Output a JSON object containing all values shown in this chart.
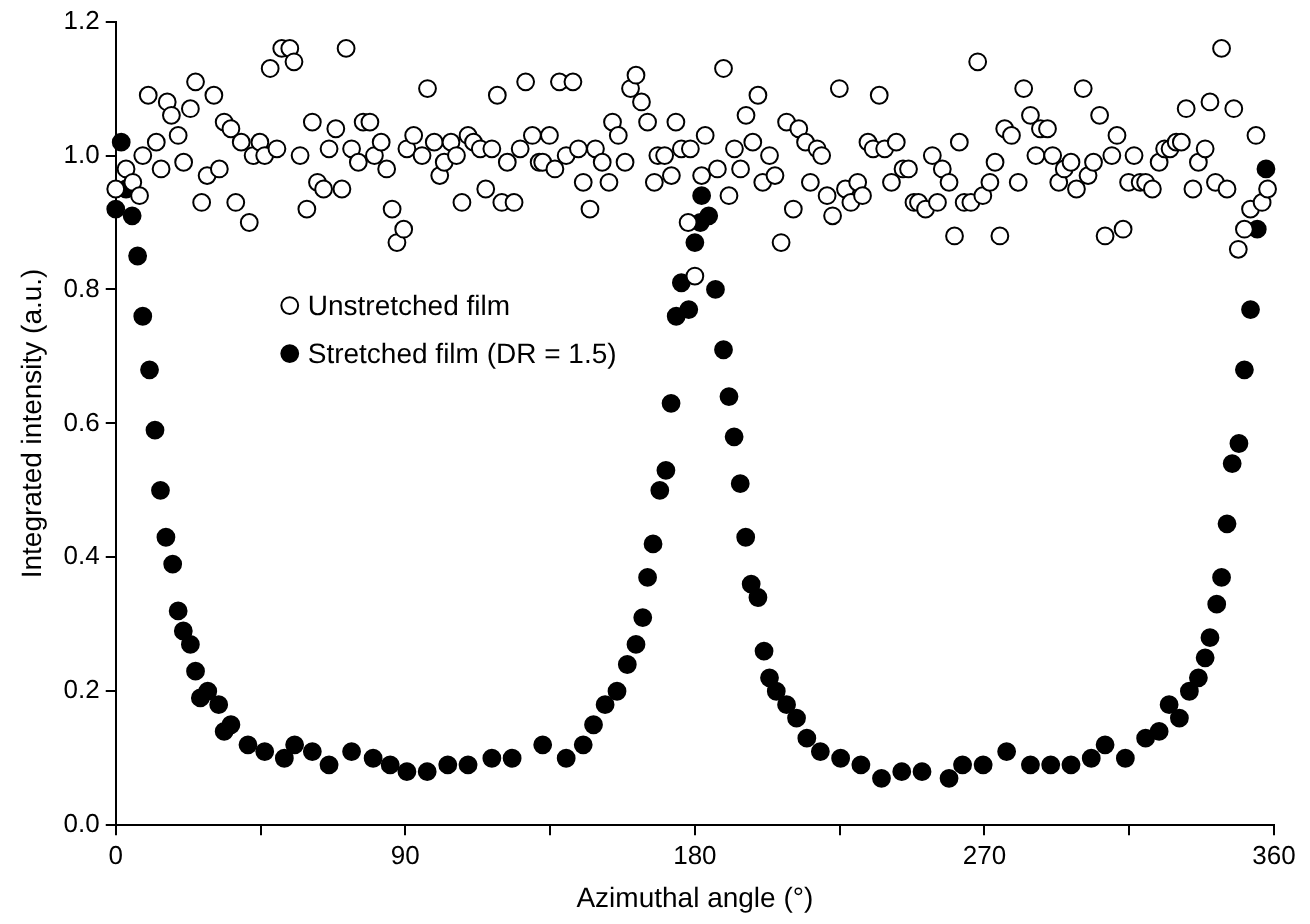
{
  "chart_data": {
    "type": "scatter",
    "xlabel": "Azimuthal angle (°)",
    "ylabel": "Integrated intensity (a.u.)",
    "xlim": [
      0,
      360
    ],
    "xticks": [
      0,
      {
        "value": 45,
        "label": null
      },
      90,
      {
        "value": 135,
        "label": null
      },
      180,
      {
        "value": 225,
        "label": null
      },
      270,
      {
        "value": 315,
        "label": null
      },
      360
    ],
    "ylim": [
      0,
      1.2
    ],
    "yticks": [
      {
        "value": 0,
        "label": "0.0"
      },
      {
        "value": 0.2,
        "label": "0.2"
      },
      {
        "value": 0.4,
        "label": "0.4"
      },
      {
        "value": 0.6,
        "label": "0.6"
      },
      {
        "value": 0.8,
        "label": "0.8"
      },
      {
        "value": 1,
        "label": "1.0"
      },
      {
        "value": 1.2,
        "label": "1.2"
      }
    ],
    "grid": false,
    "legend": "top left",
    "marker": "circle",
    "series": [
      {
        "name": "Unstretched film",
        "color": "#ffffff",
        "x": [
          0,
          3.2,
          5.3,
          7.4,
          8.4,
          10.1,
          12.6,
          14.1,
          16.0,
          17.3,
          19.4,
          21.1,
          23.2,
          24.8,
          26.7,
          28.4,
          30.5,
          32.2,
          33.7,
          35.8,
          37.3,
          39.0,
          41.5,
          42.7,
          44.8,
          46.3,
          48.0,
          50.1,
          51.6,
          54.1,
          55.4,
          57.3,
          59.4,
          61.1,
          62.7,
          64.6,
          66.3,
          68.4,
          70.3,
          71.6,
          73.3,
          75.4,
          76.9,
          79.0,
          80.4,
          82.5,
          84.2,
          85.9,
          87.4,
          89.5,
          90.5,
          92.6,
          95.2,
          96.9,
          99.0,
          100.7,
          102.1,
          104.2,
          105.9,
          107.6,
          109.5,
          111.2,
          113.3,
          115.0,
          116.9,
          118.6,
          120.0,
          121.7,
          123.8,
          125.7,
          127.4,
          129.5,
          131.6,
          132.7,
          134.8,
          136.5,
          137.9,
          140.0,
          142.1,
          143.8,
          145.3,
          147.4,
          149.1,
          151.2,
          153.3,
          154.4,
          156.2,
          158.3,
          160.0,
          161.7,
          163.4,
          165.3,
          167.4,
          168.5,
          170.6,
          172.7,
          174.1,
          175.8,
          177.9,
          180.0,
          182.1,
          178.6,
          183.2,
          187.0,
          188.9,
          190.6,
          192.3,
          194.2,
          195.9,
          198.0,
          199.6,
          201.1,
          203.2,
          204.9,
          206.8,
          208.5,
          210.6,
          212.3,
          214.4,
          215.9,
          218.0,
          219.4,
          221.1,
          222.8,
          224.9,
          226.8,
          228.5,
          230.6,
          232.1,
          233.8,
          235.4,
          237.3,
          239.0,
          241.1,
          242.6,
          244.7,
          246.4,
          248.1,
          249.5,
          251.7,
          253.8,
          255.4,
          256.9,
          259.0,
          260.7,
          262.2,
          263.7,
          265.8,
          267.9,
          269.5,
          271.7,
          273.3,
          274.8,
          276.3,
          278.4,
          280.5,
          282.2,
          284.3,
          286.0,
          287.4,
          289.6,
          291.2,
          293.1,
          294.8,
          296.9,
          298.6,
          300.7,
          302.2,
          303.9,
          305.8,
          307.5,
          309.6,
          311.2,
          313.1,
          314.8,
          316.5,
          318.4,
          320.1,
          322.2,
          324.3,
          326.0,
          327.7,
          329.6,
          331.2,
          332.7,
          334.8,
          336.5,
          338.6,
          340.1,
          341.8,
          343.7,
          345.4,
          347.5,
          348.9,
          350.8,
          352.7,
          354.4,
          356.3,
          358.0
        ],
        "values": [
          0.95,
          0.98,
          0.96,
          0.94,
          1.0,
          1.09,
          1.02,
          0.98,
          1.08,
          1.06,
          1.03,
          0.99,
          1.07,
          1.11,
          0.93,
          0.97,
          1.09,
          0.98,
          1.05,
          1.04,
          0.93,
          1.02,
          0.9,
          1.0,
          1.02,
          1.0,
          1.13,
          1.01,
          1.16,
          1.16,
          1.14,
          1.0,
          0.92,
          1.05,
          0.96,
          0.95,
          1.01,
          1.04,
          0.95,
          1.16,
          1.01,
          0.99,
          1.05,
          1.05,
          1.0,
          1.02,
          0.98,
          0.92,
          0.87,
          0.89,
          1.01,
          1.03,
          1.0,
          1.1,
          1.02,
          0.97,
          0.99,
          1.02,
          1.0,
          0.93,
          1.03,
          1.02,
          1.01,
          0.95,
          1.01,
          1.09,
          0.93,
          0.99,
          0.93,
          1.01,
          1.11,
          1.03,
          0.99,
          0.99,
          1.03,
          0.98,
          1.11,
          1.0,
          1.11,
          1.01,
          0.96,
          0.92,
          1.01,
          0.99,
          0.96,
          1.05,
          1.03,
          0.99,
          1.1,
          1.12,
          1.08,
          1.05,
          0.96,
          1.0,
          1.0,
          0.97,
          1.05,
          1.01,
          0.9,
          0.82,
          0.97,
          1.01,
          1.03,
          0.98,
          1.13,
          0.94,
          1.01,
          0.98,
          1.06,
          1.02,
          1.09,
          0.96,
          1.0,
          0.97,
          0.87,
          1.05,
          0.92,
          1.04,
          1.02,
          0.96,
          1.01,
          1.0,
          0.94,
          0.91,
          1.1,
          0.95,
          0.93,
          0.96,
          0.94,
          1.02,
          1.01,
          1.09,
          1.01,
          0.96,
          1.02,
          0.98,
          0.98,
          0.93,
          0.93,
          0.92,
          1.0,
          0.93,
          0.98,
          0.96,
          0.88,
          1.02,
          0.93,
          0.93,
          1.14,
          0.94,
          0.96,
          0.99,
          0.88,
          1.04,
          1.03,
          0.96,
          1.1,
          1.06,
          1.0,
          1.04,
          1.04,
          1.0,
          0.96,
          0.98,
          0.99,
          0.95,
          1.1,
          0.97,
          0.99,
          1.06,
          0.88,
          1.0,
          1.03,
          0.89,
          0.96,
          1.0,
          0.96,
          0.96,
          0.95,
          0.99,
          1.01,
          1.01,
          1.02,
          1.02,
          1.07,
          0.95,
          0.99,
          1.01,
          1.08,
          0.96,
          1.16,
          0.95,
          1.07,
          0.86,
          0.89,
          0.92,
          1.03,
          0.93,
          0.95
        ]
      },
      {
        "name": "Stretched film (DR = 1.5)",
        "color": "#000000",
        "x": [
          0.0,
          1.7,
          3.2,
          5.1,
          6.8,
          8.4,
          10.5,
          12.2,
          13.9,
          15.6,
          17.7,
          19.4,
          21.0,
          23.2,
          24.8,
          26.3,
          28.6,
          32.0,
          33.7,
          35.8,
          41.1,
          46.3,
          52.4,
          55.6,
          61.1,
          66.3,
          73.3,
          80.0,
          85.3,
          90.5,
          96.8,
          103.2,
          109.5,
          116.9,
          123.2,
          132.7,
          140.0,
          145.3,
          148.5,
          152.1,
          155.8,
          159.0,
          161.7,
          163.8,
          165.3,
          167.0,
          169.1,
          171.0,
          172.6,
          174.2,
          175.8,
          178.1,
          180.0,
          181.7,
          182.1,
          184.3,
          186.4,
          188.9,
          190.6,
          192.2,
          194.1,
          195.8,
          197.5,
          199.6,
          201.5,
          203.2,
          205.3,
          208.5,
          211.6,
          214.8,
          219.0,
          225.3,
          231.6,
          238.0,
          244.3,
          250.6,
          259.0,
          263.2,
          269.6,
          276.9,
          284.3,
          290.6,
          296.9,
          303.2,
          307.5,
          313.8,
          320.1,
          324.3,
          327.4,
          330.6,
          333.7,
          336.5,
          338.6,
          340.1,
          342.2,
          343.7,
          345.4,
          347.0,
          349.1,
          350.8,
          352.7,
          354.8,
          357.5
        ],
        "values": [
          0.92,
          1.02,
          0.95,
          0.91,
          0.85,
          0.76,
          0.68,
          0.59,
          0.5,
          0.43,
          0.39,
          0.32,
          0.29,
          0.27,
          0.23,
          0.19,
          0.2,
          0.18,
          0.14,
          0.15,
          0.12,
          0.11,
          0.1,
          0.12,
          0.11,
          0.09,
          0.11,
          0.1,
          0.09,
          0.08,
          0.08,
          0.09,
          0.09,
          0.1,
          0.1,
          0.12,
          0.1,
          0.12,
          0.15,
          0.18,
          0.2,
          0.24,
          0.27,
          0.31,
          0.37,
          0.42,
          0.5,
          0.53,
          0.63,
          0.76,
          0.81,
          0.77,
          0.87,
          0.9,
          0.94,
          0.91,
          0.8,
          0.71,
          0.64,
          0.58,
          0.51,
          0.43,
          0.36,
          0.34,
          0.26,
          0.22,
          0.2,
          0.18,
          0.16,
          0.13,
          0.11,
          0.1,
          0.09,
          0.07,
          0.08,
          0.08,
          0.07,
          0.09,
          0.09,
          0.11,
          0.09,
          0.09,
          0.09,
          0.1,
          0.12,
          0.1,
          0.13,
          0.14,
          0.18,
          0.16,
          0.2,
          0.22,
          0.25,
          0.28,
          0.33,
          0.37,
          0.45,
          0.54,
          0.57,
          0.68,
          0.77,
          0.89,
          0.98
        ]
      }
    ]
  }
}
